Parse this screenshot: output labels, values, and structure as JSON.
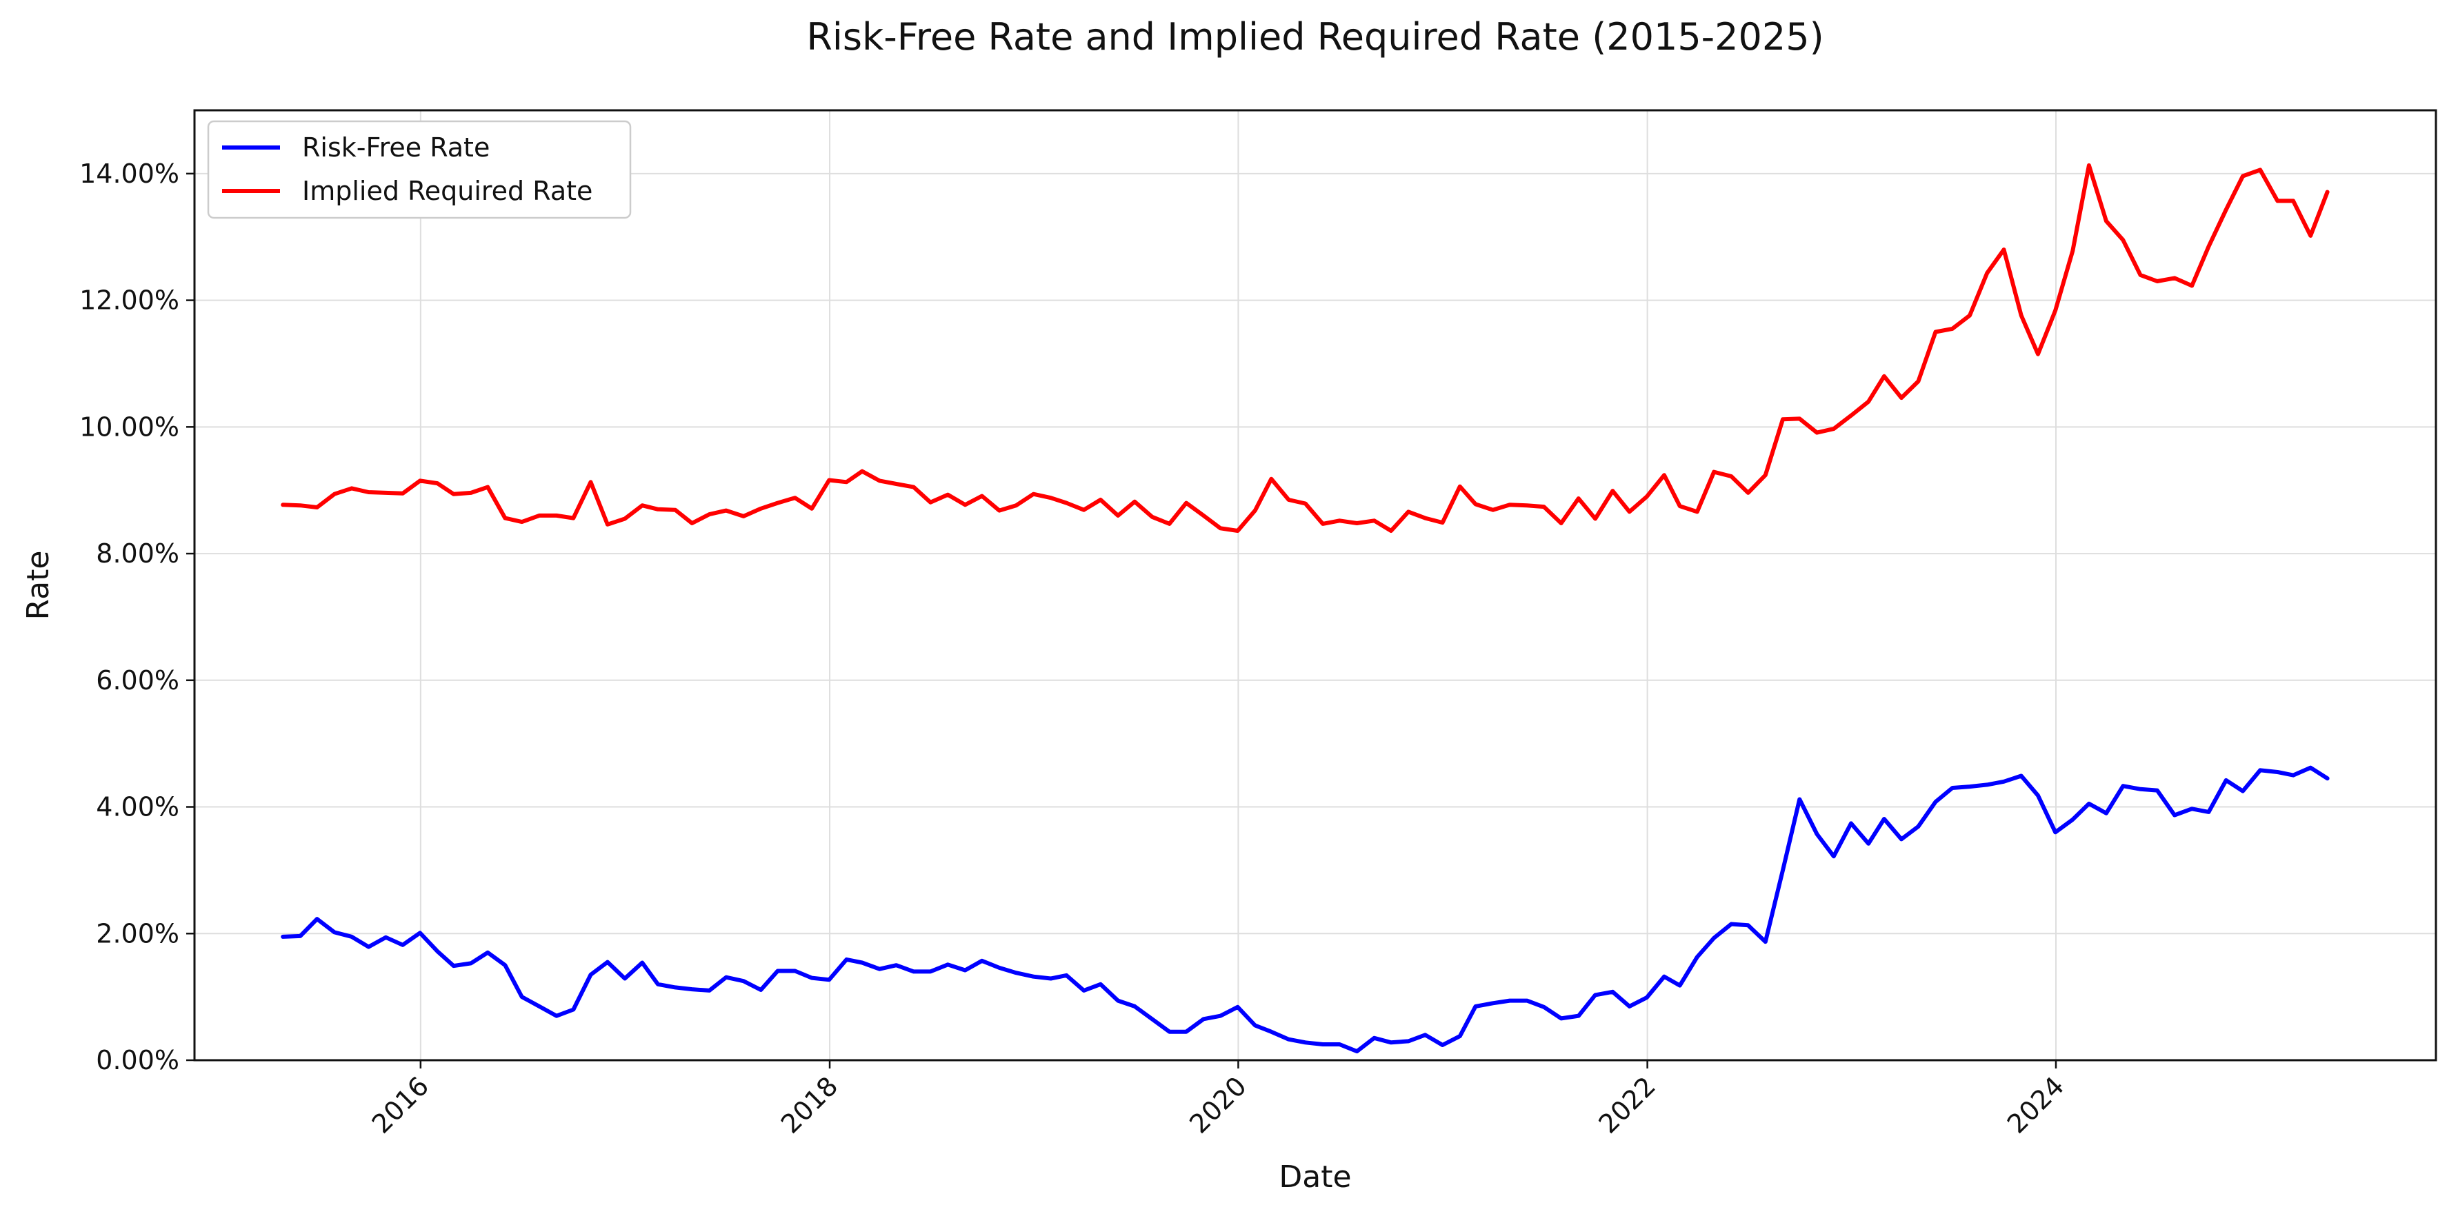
{
  "chart_data": {
    "type": "line",
    "title": "Risk-Free Rate and Implied Required Rate (2015-2025)",
    "xlabel": "Date",
    "ylabel": "Rate",
    "xlim": [
      "2014-11-23",
      "2025-11-10"
    ],
    "ylim": [
      0,
      0.15
    ],
    "x_ticks": [
      {
        "date": "2016-01-01",
        "label": "2016"
      },
      {
        "date": "2018-01-01",
        "label": "2018"
      },
      {
        "date": "2020-01-01",
        "label": "2020"
      },
      {
        "date": "2022-01-01",
        "label": "2022"
      },
      {
        "date": "2024-01-01",
        "label": "2024"
      }
    ],
    "y_ticks": [
      {
        "value": 0.0,
        "label": "0.00%"
      },
      {
        "value": 0.02,
        "label": "2.00%"
      },
      {
        "value": 0.04,
        "label": "4.00%"
      },
      {
        "value": 0.06,
        "label": "6.00%"
      },
      {
        "value": 0.08,
        "label": "8.00%"
      },
      {
        "value": 0.1,
        "label": "10.00%"
      },
      {
        "value": 0.12,
        "label": "12.00%"
      },
      {
        "value": 0.14,
        "label": "14.00%"
      }
    ],
    "grid": true,
    "legend_position": "top-left",
    "x": [
      "2015-04-30",
      "2015-05-31",
      "2015-06-30",
      "2015-07-31",
      "2015-08-31",
      "2015-09-30",
      "2015-10-31",
      "2015-11-30",
      "2015-12-31",
      "2016-01-31",
      "2016-02-29",
      "2016-03-31",
      "2016-04-30",
      "2016-05-31",
      "2016-06-30",
      "2016-07-31",
      "2016-08-31",
      "2016-09-30",
      "2016-10-31",
      "2016-11-30",
      "2016-12-31",
      "2017-01-31",
      "2017-02-28",
      "2017-03-31",
      "2017-04-30",
      "2017-05-31",
      "2017-06-30",
      "2017-07-31",
      "2017-08-31",
      "2017-09-30",
      "2017-10-31",
      "2017-11-30",
      "2017-12-31",
      "2018-01-31",
      "2018-02-28",
      "2018-03-31",
      "2018-04-30",
      "2018-05-31",
      "2018-06-30",
      "2018-07-31",
      "2018-08-31",
      "2018-09-30",
      "2018-10-31",
      "2018-11-30",
      "2018-12-31",
      "2019-01-31",
      "2019-02-28",
      "2019-03-31",
      "2019-04-30",
      "2019-05-31",
      "2019-06-30",
      "2019-07-31",
      "2019-08-31",
      "2019-09-30",
      "2019-10-31",
      "2019-11-30",
      "2019-12-31",
      "2020-01-31",
      "2020-02-29",
      "2020-03-31",
      "2020-04-30",
      "2020-05-31",
      "2020-06-30",
      "2020-07-31",
      "2020-08-31",
      "2020-09-30",
      "2020-10-31",
      "2020-11-30",
      "2020-12-31",
      "2021-01-31",
      "2021-02-28",
      "2021-03-31",
      "2021-04-30",
      "2021-05-31",
      "2021-06-30",
      "2021-07-31",
      "2021-08-31",
      "2021-09-30",
      "2021-10-31",
      "2021-11-30",
      "2021-12-31",
      "2022-01-31",
      "2022-02-28",
      "2022-03-31",
      "2022-04-30",
      "2022-05-31",
      "2022-06-30",
      "2022-07-31",
      "2022-08-31",
      "2022-09-30",
      "2022-10-31",
      "2022-11-30",
      "2022-12-31",
      "2023-01-31",
      "2023-02-28",
      "2023-03-31",
      "2023-04-30",
      "2023-05-31",
      "2023-06-30",
      "2023-07-31",
      "2023-08-31",
      "2023-09-30",
      "2023-10-31",
      "2023-11-30",
      "2023-12-31",
      "2024-01-31",
      "2024-02-29",
      "2024-03-31",
      "2024-04-30",
      "2024-05-31",
      "2024-06-30",
      "2024-07-31",
      "2024-08-31",
      "2024-09-30",
      "2024-10-31",
      "2024-11-30",
      "2024-12-31",
      "2025-01-31",
      "2025-02-28",
      "2025-03-31",
      "2025-04-30"
    ],
    "series": [
      {
        "name": "Risk-Free Rate",
        "color": "#0000ff",
        "values": [
          0.0195,
          0.0196,
          0.0223,
          0.0202,
          0.0195,
          0.0179,
          0.0194,
          0.0182,
          0.0201,
          0.0172,
          0.0149,
          0.0153,
          0.017,
          0.015,
          0.01,
          0.0085,
          0.007,
          0.008,
          0.0135,
          0.0155,
          0.0129,
          0.0154,
          0.012,
          0.0115,
          0.0112,
          0.011,
          0.0131,
          0.0125,
          0.0111,
          0.0141,
          0.0141,
          0.013,
          0.0127,
          0.0159,
          0.0154,
          0.0144,
          0.015,
          0.014,
          0.014,
          0.0151,
          0.0142,
          0.0157,
          0.0146,
          0.0138,
          0.0132,
          0.0129,
          0.0134,
          0.011,
          0.012,
          0.0094,
          0.0085,
          0.0065,
          0.0045,
          0.0045,
          0.0065,
          0.007,
          0.0084,
          0.0055,
          0.0045,
          0.0033,
          0.0028,
          0.0025,
          0.0025,
          0.0014,
          0.0035,
          0.0028,
          0.003,
          0.004,
          0.0024,
          0.0038,
          0.0085,
          0.009,
          0.0094,
          0.0094,
          0.0084,
          0.0066,
          0.007,
          0.0103,
          0.0108,
          0.0085,
          0.0099,
          0.0132,
          0.0118,
          0.0163,
          0.0193,
          0.0215,
          0.0213,
          0.0187,
          0.03,
          0.0412,
          0.0357,
          0.0322,
          0.0374,
          0.0342,
          0.0381,
          0.0349,
          0.0369,
          0.0408,
          0.043,
          0.0432,
          0.0435,
          0.044,
          0.0449,
          0.0418,
          0.036,
          0.038,
          0.0405,
          0.039,
          0.0433,
          0.0428,
          0.0426,
          0.0387,
          0.0397,
          0.0392,
          0.0442,
          0.0425,
          0.0458,
          0.0455,
          0.045,
          0.0462,
          0.0445
        ]
      },
      {
        "name": "Implied Required Rate",
        "color": "#ff0000",
        "values": [
          0.0877,
          0.0876,
          0.0873,
          0.0894,
          0.0903,
          0.0897,
          0.0896,
          0.0895,
          0.0915,
          0.0911,
          0.0894,
          0.0896,
          0.0905,
          0.0856,
          0.085,
          0.086,
          0.086,
          0.0856,
          0.0913,
          0.0846,
          0.0855,
          0.0876,
          0.087,
          0.0869,
          0.0848,
          0.0862,
          0.0868,
          0.0859,
          0.0871,
          0.088,
          0.0888,
          0.0871,
          0.0916,
          0.0913,
          0.093,
          0.0915,
          0.091,
          0.0905,
          0.0881,
          0.0893,
          0.0877,
          0.0891,
          0.0868,
          0.0876,
          0.0894,
          0.0888,
          0.088,
          0.0869,
          0.0885,
          0.086,
          0.0882,
          0.0858,
          0.0847,
          0.088,
          0.086,
          0.084,
          0.0836,
          0.0868,
          0.0918,
          0.0885,
          0.0879,
          0.0847,
          0.0852,
          0.0848,
          0.0852,
          0.0836,
          0.0866,
          0.0856,
          0.0849,
          0.0906,
          0.0878,
          0.0869,
          0.0877,
          0.0876,
          0.0874,
          0.0848,
          0.0887,
          0.0855,
          0.0899,
          0.0866,
          0.089,
          0.0924,
          0.0875,
          0.0866,
          0.0929,
          0.0922,
          0.0896,
          0.0924,
          0.1012,
          0.1013,
          0.0991,
          0.0997,
          0.1018,
          0.104,
          0.108,
          0.1046,
          0.1072,
          0.115,
          0.1155,
          0.1176,
          0.1243,
          0.128,
          0.1176,
          0.1115,
          0.1184,
          0.1278,
          0.1413,
          0.1325,
          0.1295,
          0.124,
          0.123,
          0.1235,
          0.1223,
          0.1285,
          0.1343,
          0.1396,
          0.1406,
          0.1357,
          0.1357,
          0.1302,
          0.1371
        ]
      }
    ]
  }
}
